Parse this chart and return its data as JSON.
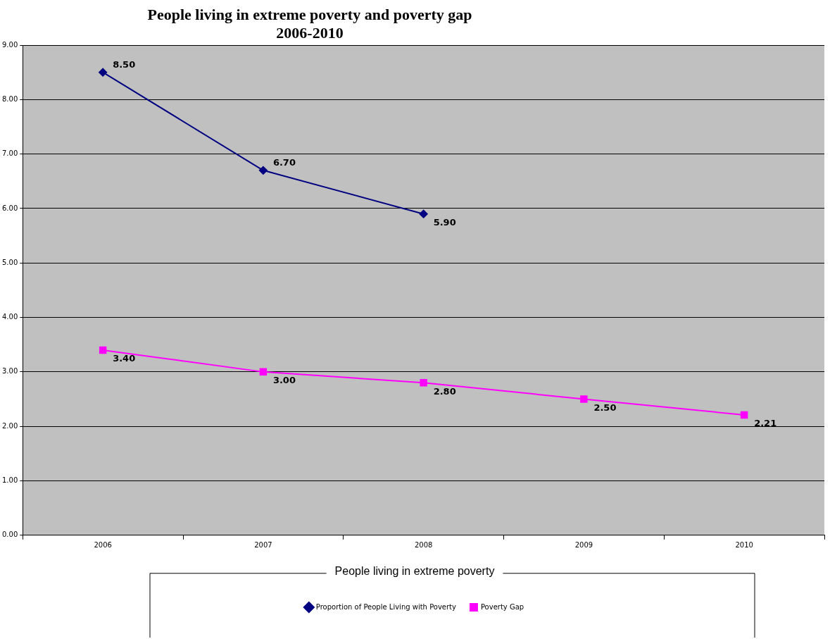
{
  "chart_data": {
    "type": "line",
    "title": "People living in extreme poverty and poverty gap 2006-2010",
    "categories": [
      "2006",
      "2007",
      "2008",
      "2009",
      "2010"
    ],
    "series": [
      {
        "name": "Proportion of People Living with Poverty",
        "color": "#000080",
        "marker": "diamond",
        "values": [
          8.5,
          6.7,
          5.9,
          null,
          null
        ],
        "value_labels": [
          "8.50",
          "6.70",
          "5.90",
          null,
          null
        ]
      },
      {
        "name": "Poverty Gap",
        "color": "#ff00ff",
        "marker": "square",
        "values": [
          3.4,
          3.0,
          2.8,
          2.5,
          2.21
        ],
        "value_labels": [
          "3.40",
          "3.00",
          "2.80",
          "2.50",
          "2.21"
        ]
      }
    ],
    "ylim": [
      0,
      9
    ],
    "yticks": [
      {
        "value": 0,
        "label": "0.00"
      },
      {
        "value": 1,
        "label": "1.00"
      },
      {
        "value": 2,
        "label": "2.00"
      },
      {
        "value": 3,
        "label": "3.00"
      },
      {
        "value": 4,
        "label": "4.00"
      },
      {
        "value": 5,
        "label": "5.00"
      },
      {
        "value": 6,
        "label": "6.00"
      },
      {
        "value": 7,
        "label": "7.00"
      },
      {
        "value": 8,
        "label": "8.00"
      },
      {
        "value": 9,
        "label": "9.00"
      }
    ],
    "grid": "y",
    "legend": "bottom",
    "legend_title": "People living in extreme poverty",
    "line_style": "solid"
  }
}
